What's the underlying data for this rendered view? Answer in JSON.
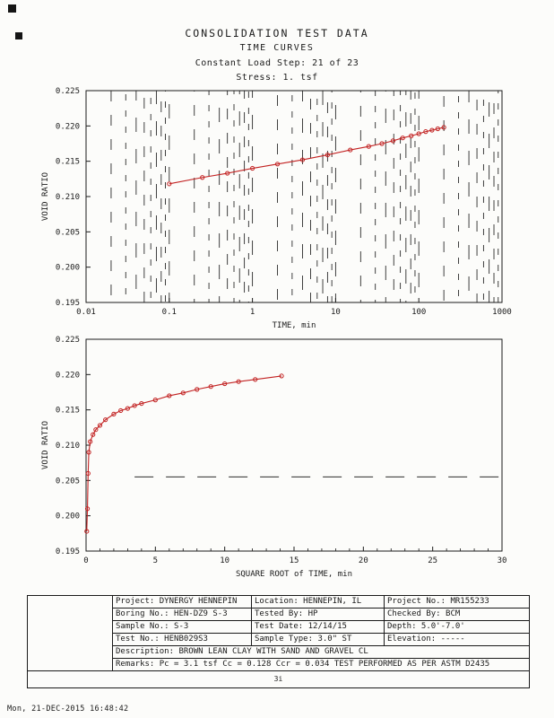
{
  "page": {
    "header": {
      "title": "CONSOLIDATION TEST DATA",
      "subtitle": "TIME CURVES",
      "load_step": "Constant Load Step: 21 of 23",
      "stress": "Stress: 1. tsf"
    },
    "footer": {
      "timestamp": "Mon, 21-DEC-2015 16:48:42"
    },
    "page_code": "3i"
  },
  "info_table": {
    "rows": [
      [
        "Project: DYNERGY HENNEPIN",
        "Location: HENNEPIN, IL",
        "Project No.: MR155233"
      ],
      [
        "Boring No.: HEN-DZ9 S-3",
        "Tested By: HP",
        "Checked By: BCM"
      ],
      [
        "Sample No.: S-3",
        "Test Date: 12/14/15",
        "Depth: 5.0'-7.0'"
      ],
      [
        "Test No.: HENB029S3",
        "Sample Type: 3.0\" ST",
        "Elevation: -----"
      ]
    ],
    "description": "Description: BROWN LEAN CLAY WITH SAND AND GRAVEL CL",
    "remarks": "Remarks: Pc = 3.1 tsf Cc = 0.128 Ccr = 0.034 TEST PERFORMED AS PER ASTM D2435"
  },
  "chart_data": [
    {
      "type": "line",
      "title": "Void ratio vs log time",
      "xscale": "log",
      "xlabel": "TIME, min",
      "ylabel": "VOID RATIO",
      "xlim": [
        0.01,
        1000
      ],
      "ylim": [
        0.195,
        0.225
      ],
      "xticks": [
        0.01,
        0.1,
        1,
        10,
        100,
        1000
      ],
      "xtick_labels": [
        "0.01",
        "0.1",
        "1",
        "10",
        "100",
        "1000"
      ],
      "yticks": [
        0.195,
        0.2,
        0.205,
        0.21,
        0.215,
        0.22,
        0.225
      ],
      "ytick_labels": [
        "0.195",
        "0.200",
        "0.205",
        "0.210",
        "0.215",
        "0.220",
        "0.225"
      ],
      "grid": "dashed-vertical-log-minor",
      "legend": "none",
      "series": [
        {
          "name": "void-ratio-vs-log-time",
          "color": "#c22222",
          "marker": "circle",
          "x": [
            0.1,
            0.25,
            0.5,
            1,
            2,
            4,
            8,
            15,
            25,
            36,
            49,
            64,
            81,
            100,
            121,
            144,
            169,
            200
          ],
          "y": [
            0.2118,
            0.2127,
            0.2133,
            0.214,
            0.2146,
            0.2152,
            0.2159,
            0.2166,
            0.2171,
            0.2175,
            0.2179,
            0.2183,
            0.2186,
            0.2189,
            0.2192,
            0.2194,
            0.2196,
            0.2198
          ]
        }
      ]
    },
    {
      "type": "line",
      "title": "Void ratio vs square root of time",
      "xscale": "linear",
      "xlabel": "SQUARE ROOT of TIME, min",
      "ylabel": "VOID RATIO",
      "xlim": [
        0,
        30
      ],
      "ylim": [
        0.195,
        0.225
      ],
      "xticks": [
        0,
        5,
        10,
        15,
        20,
        25,
        30
      ],
      "xtick_labels": [
        "0",
        "5",
        "10",
        "15",
        "20",
        "25",
        "30"
      ],
      "yticks": [
        0.195,
        0.2,
        0.205,
        0.21,
        0.215,
        0.22,
        0.225
      ],
      "ytick_labels": [
        "0.195",
        "0.200",
        "0.205",
        "0.210",
        "0.215",
        "0.220",
        "0.225"
      ],
      "grid": "none",
      "legend": "none",
      "refline": {
        "y": 0.2055,
        "x0": 3.5,
        "x1": 30,
        "style": "dashed"
      },
      "series": [
        {
          "name": "void-ratio-vs-sqrt-time",
          "color": "#c22222",
          "marker": "circle",
          "x": [
            0.05,
            0.1,
            0.15,
            0.2,
            0.3,
            0.5,
            0.7,
            1,
            1.4,
            2,
            2.5,
            3,
            3.5,
            4,
            5,
            6,
            7,
            8,
            9,
            10,
            11,
            12.2,
            14.1
          ],
          "y": [
            0.1978,
            0.201,
            0.206,
            0.209,
            0.2105,
            0.2115,
            0.2122,
            0.2128,
            0.2136,
            0.2144,
            0.2149,
            0.2152,
            0.2156,
            0.2159,
            0.2164,
            0.217,
            0.2174,
            0.2179,
            0.2183,
            0.2187,
            0.219,
            0.2193,
            0.2198
          ]
        }
      ]
    }
  ]
}
